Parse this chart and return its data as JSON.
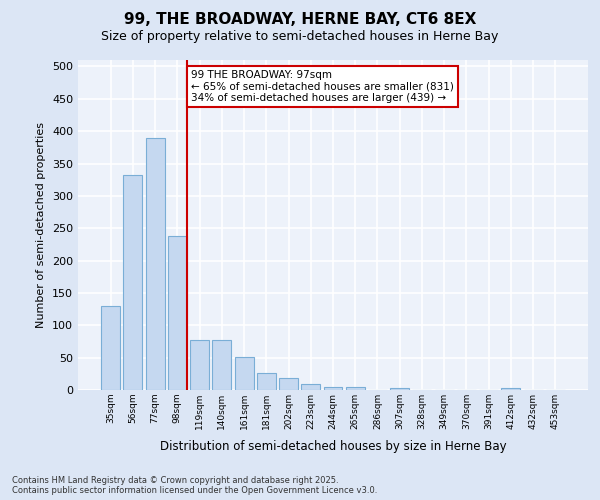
{
  "title_line1": "99, THE BROADWAY, HERNE BAY, CT6 8EX",
  "title_line2": "Size of property relative to semi-detached houses in Herne Bay",
  "xlabel": "Distribution of semi-detached houses by size in Herne Bay",
  "ylabel": "Number of semi-detached properties",
  "categories": [
    "35sqm",
    "56sqm",
    "77sqm",
    "98sqm",
    "119sqm",
    "140sqm",
    "161sqm",
    "181sqm",
    "202sqm",
    "223sqm",
    "244sqm",
    "265sqm",
    "286sqm",
    "307sqm",
    "328sqm",
    "349sqm",
    "370sqm",
    "391sqm",
    "412sqm",
    "432sqm",
    "453sqm"
  ],
  "values": [
    130,
    333,
    390,
    238,
    78,
    78,
    51,
    26,
    18,
    10,
    5,
    5,
    0,
    3,
    0,
    0,
    0,
    0,
    3,
    0,
    0
  ],
  "bar_color": "#c5d8f0",
  "bar_edge_color": "#7aaed6",
  "vline_color": "#cc0000",
  "vline_index": 3,
  "annotation_text": "99 THE BROADWAY: 97sqm\n← 65% of semi-detached houses are smaller (831)\n34% of semi-detached houses are larger (439) →",
  "annotation_box_facecolor": "#ffffff",
  "annotation_box_edgecolor": "#cc0000",
  "bg_color": "#dce6f5",
  "plot_bg_color": "#edf2fa",
  "grid_color": "#ffffff",
  "footer_text": "Contains HM Land Registry data © Crown copyright and database right 2025.\nContains public sector information licensed under the Open Government Licence v3.0.",
  "ylim": [
    0,
    510
  ],
  "yticks": [
    0,
    50,
    100,
    150,
    200,
    250,
    300,
    350,
    400,
    450,
    500
  ]
}
